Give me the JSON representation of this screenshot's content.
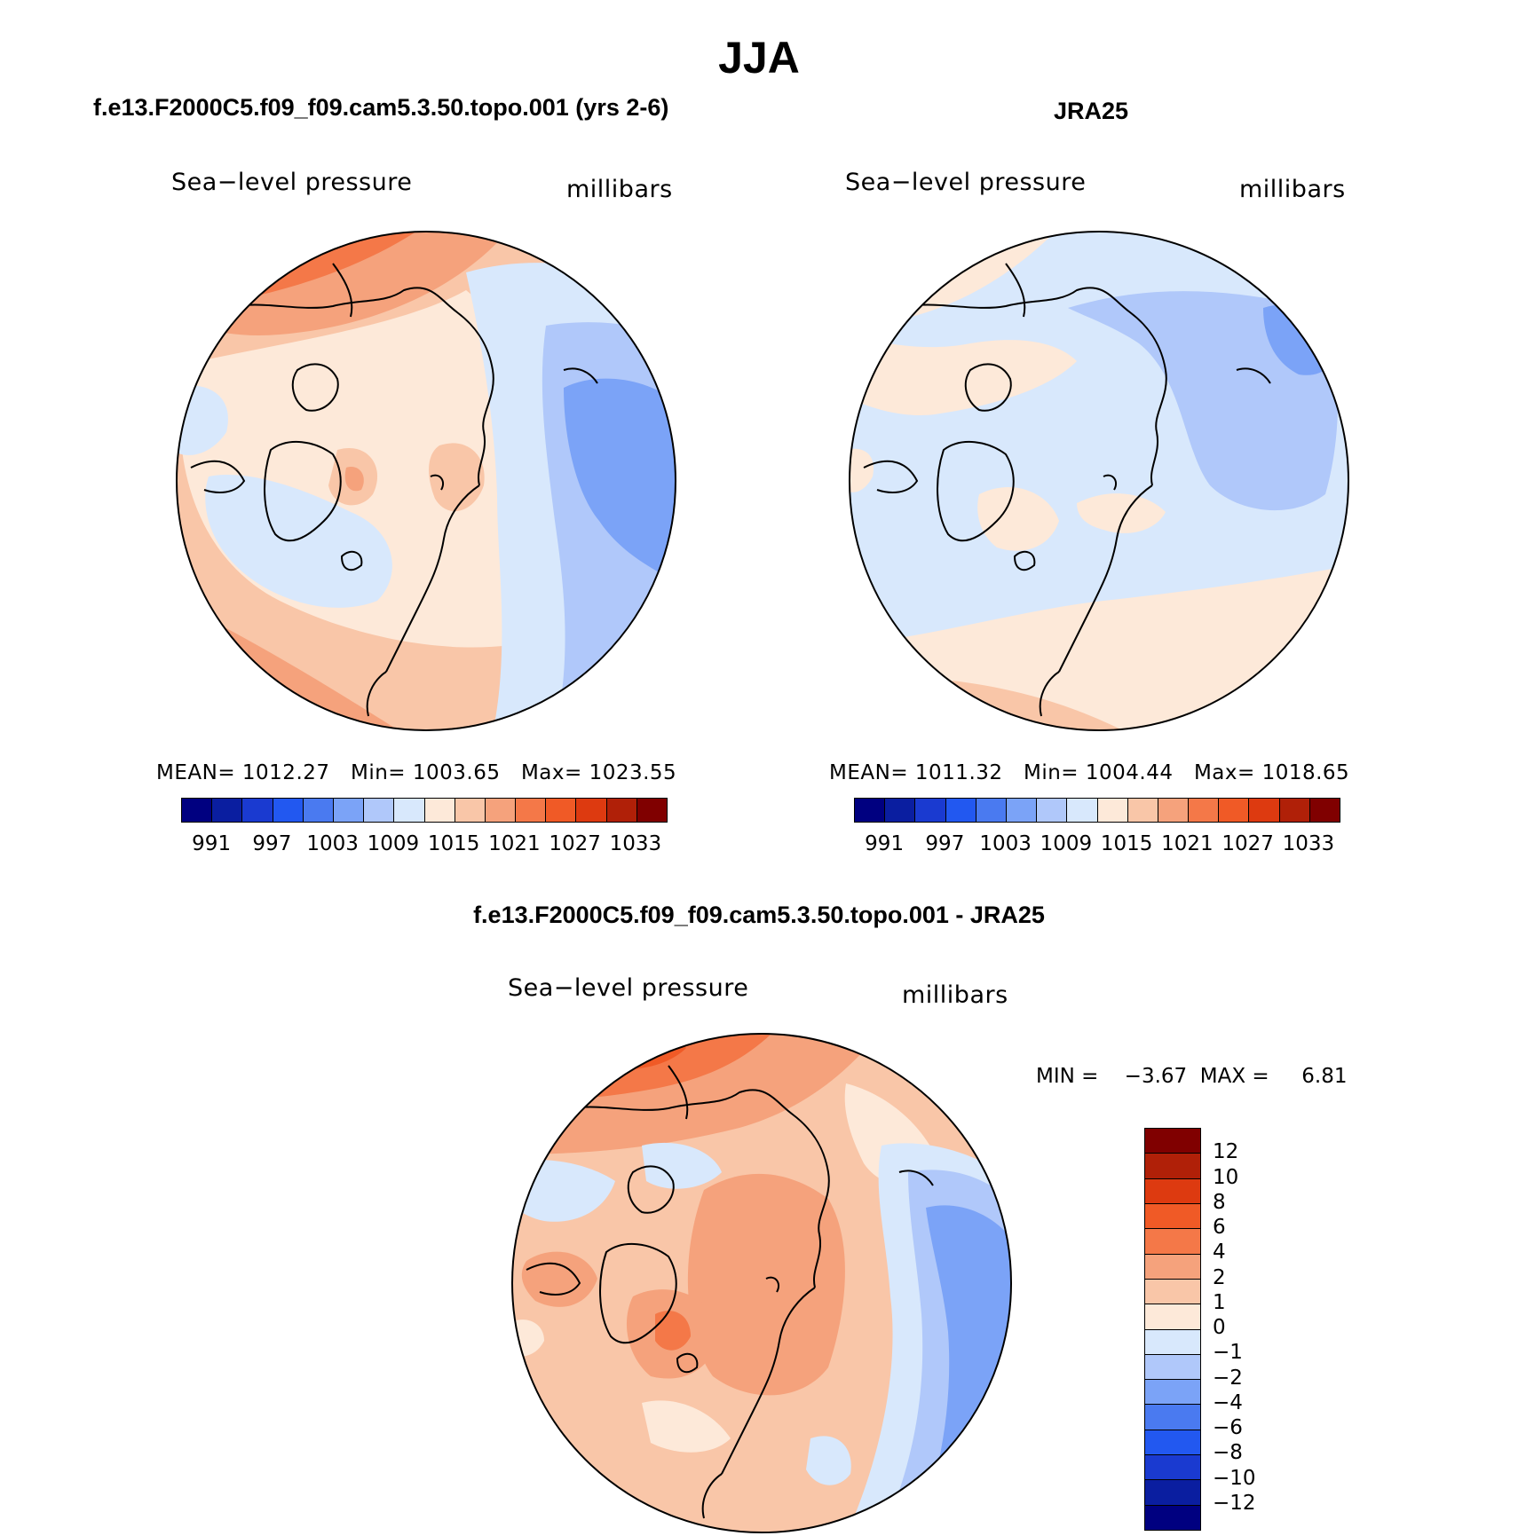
{
  "title": "JJA",
  "panels": [
    {
      "id": "model",
      "title": "f.e13.F2000C5.f09_f09.cam5.3.50.topo.001 (yrs 2-6)",
      "field": "Sea−level pressure",
      "units": "millibars",
      "stats": {
        "mean_label": "MEAN=",
        "mean": "1012.27",
        "min_label": "Min=",
        "min": "1003.65",
        "max_label": "Max=",
        "max": "1023.55"
      }
    },
    {
      "id": "obs",
      "title": "JRA25",
      "field": "Sea−level pressure",
      "units": "millibars",
      "stats": {
        "mean_label": "MEAN=",
        "mean": "1011.32",
        "min_label": "Min=",
        "min": "1004.44",
        "max_label": "Max=",
        "max": "1018.65"
      }
    },
    {
      "id": "diff",
      "title": "f.e13.F2000C5.f09_f09.cam5.3.50.topo.001 - JRA25",
      "field": "Sea−level pressure",
      "units": "millibars",
      "stats": {
        "min_label": "MIN =",
        "min": "−3.67",
        "max_label": "MAX =",
        "max": "6.81"
      }
    }
  ],
  "colorbar_abs": {
    "colors": [
      "#000080",
      "#0a1ea0",
      "#1a3ad0",
      "#2258f0",
      "#4a7af0",
      "#7ba3f7",
      "#b0c8fa",
      "#d8e8fc",
      "#fde9d9",
      "#f9c6a8",
      "#f5a27c",
      "#f47848",
      "#f05a26",
      "#dd3a10",
      "#b02008",
      "#800000"
    ],
    "labels": [
      "991",
      "997",
      "1003",
      "1009",
      "1015",
      "1021",
      "1027",
      "1033"
    ]
  },
  "colorbar_diff": {
    "colors": [
      "#800000",
      "#b02008",
      "#dd3a10",
      "#f05a26",
      "#f47848",
      "#f5a27c",
      "#f9c6a8",
      "#fde9d9",
      "#d8e8fc",
      "#b0c8fa",
      "#7ba3f7",
      "#4a7af0",
      "#2258f0",
      "#1a3ad0",
      "#0a1ea0",
      "#000080"
    ],
    "labels": [
      "12",
      "10",
      "8",
      "6",
      "4",
      "2",
      "1",
      "0",
      "−1",
      "−2",
      "−4",
      "−6",
      "−8",
      "−10",
      "−12"
    ]
  }
}
